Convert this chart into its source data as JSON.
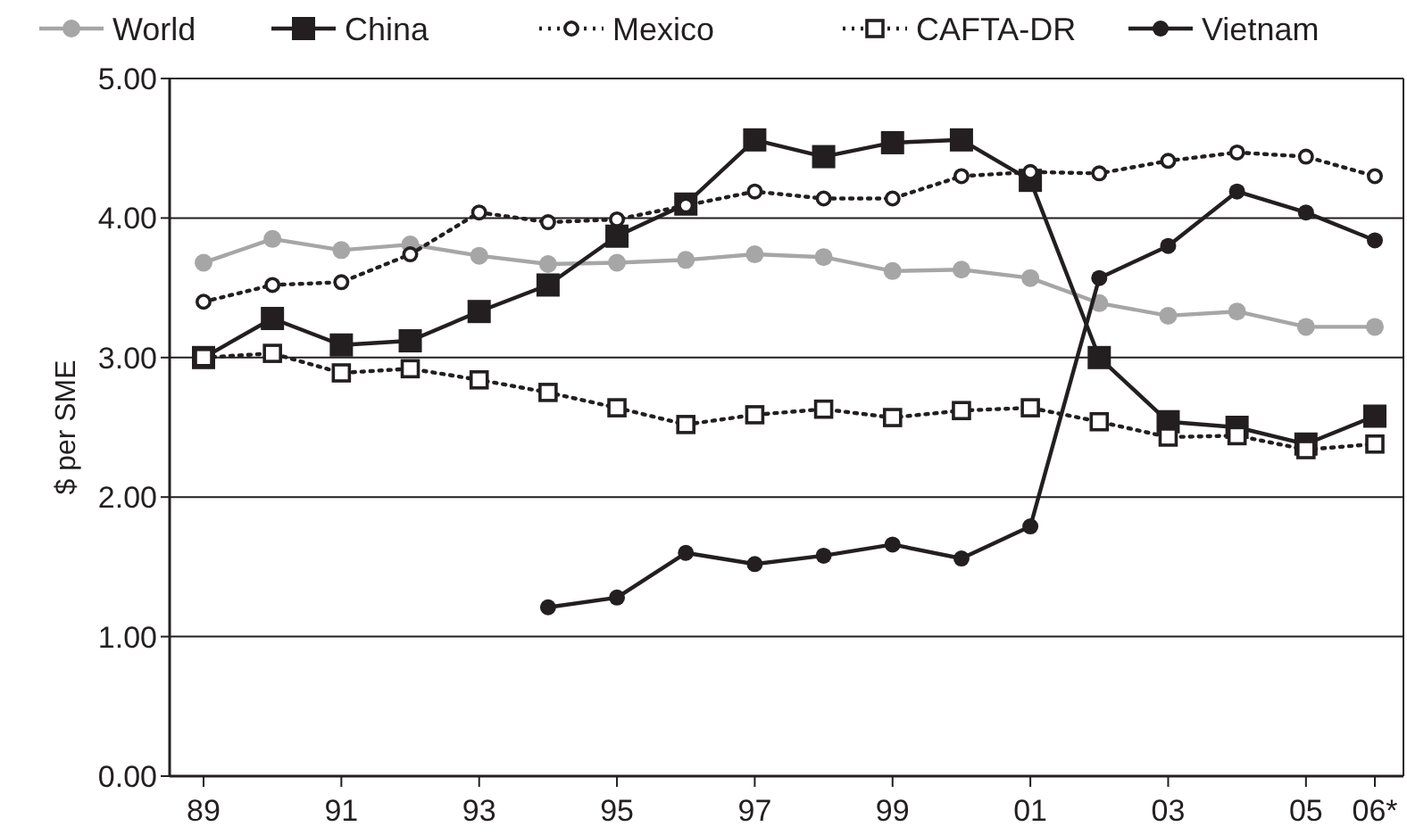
{
  "chart_data": {
    "type": "line",
    "ylabel": "$ per SME",
    "categories": [
      "89",
      null,
      "91",
      null,
      "93",
      null,
      "95",
      null,
      "97",
      null,
      "99",
      null,
      "01",
      null,
      "03",
      null,
      "05",
      "06*"
    ],
    "ylim": [
      0,
      5
    ],
    "yticks": [
      {
        "value": 0,
        "label": "0.00"
      },
      {
        "value": 1,
        "label": "1.00"
      },
      {
        "value": 2,
        "label": "2.00"
      },
      {
        "value": 3,
        "label": "3.00"
      },
      {
        "value": 4,
        "label": "4.00"
      },
      {
        "value": 5,
        "label": "5.00"
      }
    ],
    "grid": "y",
    "legend": "top",
    "series": [
      {
        "name": "World",
        "color": "#a6a6a6",
        "marker": "circle",
        "line_style": "solid",
        "values": [
          3.68,
          3.85,
          3.77,
          3.81,
          3.73,
          3.67,
          3.68,
          3.7,
          3.74,
          3.72,
          3.62,
          3.63,
          3.57,
          3.39,
          3.3,
          3.33,
          3.22,
          3.22
        ]
      },
      {
        "name": "China",
        "color": "#231f20",
        "marker": "square",
        "line_style": "solid",
        "values": [
          3.0,
          3.28,
          3.09,
          3.12,
          3.33,
          3.52,
          3.87,
          4.1,
          4.56,
          4.44,
          4.54,
          4.56,
          4.27,
          3.0,
          2.54,
          2.5,
          2.38,
          2.58
        ]
      },
      {
        "name": "Mexico",
        "color": "#231f20",
        "marker": "circle",
        "line_style": "dotted",
        "values": [
          3.4,
          3.52,
          3.54,
          3.74,
          4.04,
          3.97,
          3.99,
          4.09,
          4.19,
          4.14,
          4.14,
          4.3,
          4.33,
          4.32,
          4.41,
          4.47,
          4.44,
          4.3
        ]
      },
      {
        "name": "CAFTA-DR",
        "color": "#231f20",
        "marker": "square",
        "line_style": "dotted",
        "values": [
          3.0,
          3.03,
          2.89,
          2.92,
          2.84,
          2.75,
          2.64,
          2.52,
          2.59,
          2.63,
          2.57,
          2.62,
          2.64,
          2.54,
          2.43,
          2.44,
          2.34,
          2.38
        ]
      },
      {
        "name": "Vietnam",
        "color": "#231f20",
        "marker": "circle",
        "line_style": "solid",
        "values": [
          null,
          null,
          null,
          null,
          null,
          1.21,
          1.28,
          1.6,
          1.52,
          1.58,
          1.66,
          1.56,
          1.79,
          3.57,
          3.8,
          4.19,
          4.04,
          3.84
        ]
      }
    ]
  }
}
